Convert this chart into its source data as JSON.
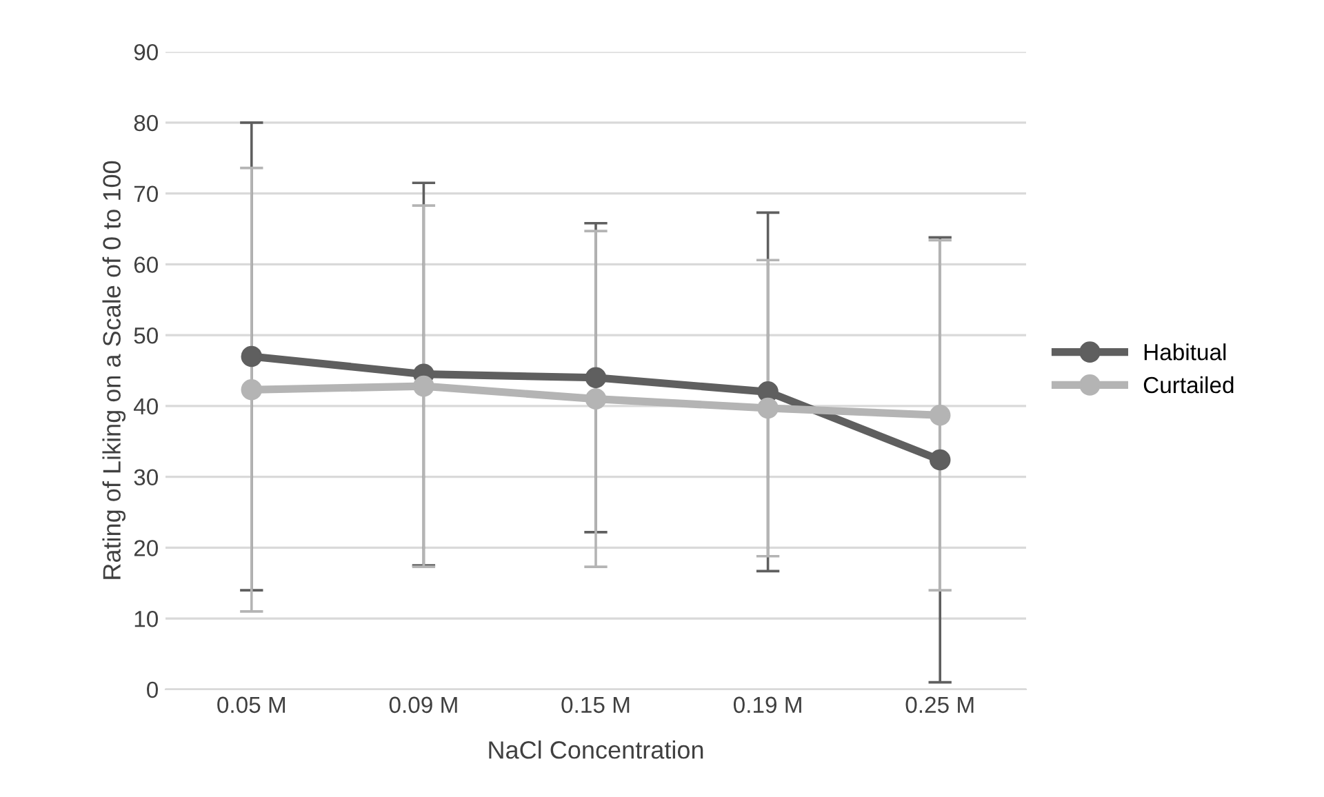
{
  "chart_data": {
    "type": "line",
    "xlabel": "NaCl Concentration",
    "ylabel": "Rating of Liking on a Scale of 0 to 100",
    "categories": [
      "0.05 M",
      "0.09 M",
      "0.15 M",
      "0.19 M",
      "0.25 M"
    ],
    "series": [
      {
        "name": "Habitual",
        "color": "#5f5f5f",
        "values": [
          47,
          44.5,
          44,
          42,
          32.4
        ],
        "errors": [
          33,
          27,
          21.8,
          25.3,
          31.4
        ]
      },
      {
        "name": "Curtailed",
        "color": "#b4b4b4",
        "values": [
          42.3,
          42.8,
          41,
          39.7,
          38.7
        ],
        "errors": [
          31.3,
          25.5,
          23.7,
          20.9,
          24.7
        ]
      }
    ],
    "ylim": [
      0,
      90
    ],
    "yticks": [
      0,
      10,
      20,
      30,
      40,
      50,
      60,
      70,
      80,
      90
    ],
    "grid": "y",
    "legend": "right",
    "marker": "circle"
  }
}
